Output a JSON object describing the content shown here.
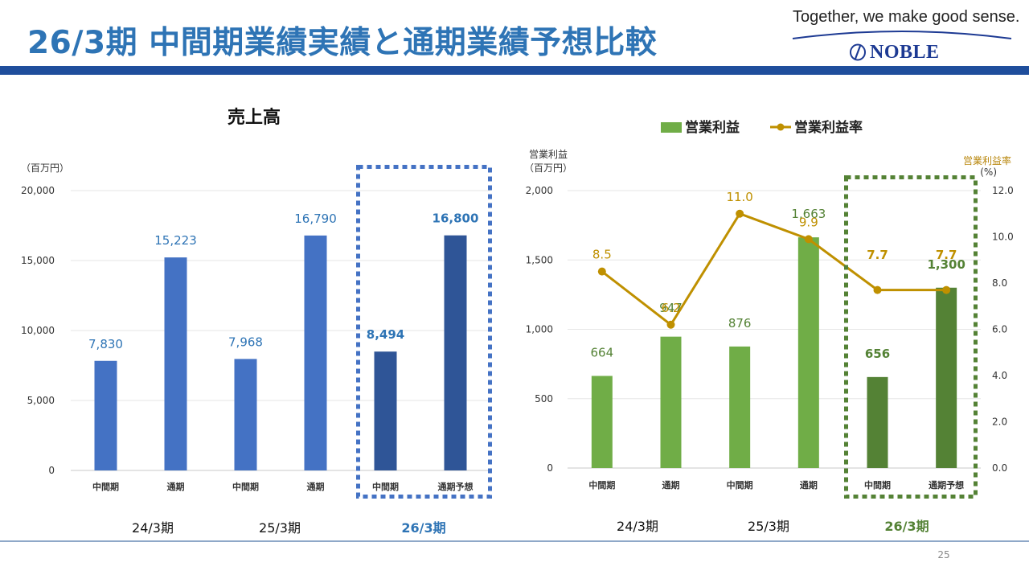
{
  "header": {
    "title": "26/3期 中間期業績実績と通期業績予想比較",
    "tagline": "Together, we make good sense.",
    "logo_text": "NOBLE"
  },
  "page_number": "25",
  "colors": {
    "title": "#2e74b5",
    "band": "#1f4e9c",
    "sales_bar": "#4472c4",
    "sales_bar_dark": "#2f5597",
    "sales_frame": "#4472c4",
    "sales_label": "#2e74b5",
    "profit_bar": "#70ad47",
    "profit_bar_dark": "#548235",
    "profit_frame": "#548235",
    "profit_label": "#548235",
    "rate_line": "#bf9000"
  },
  "chart_data": [
    {
      "type": "bar",
      "title": "売上高",
      "unit_label": "（百万円）",
      "categories": [
        "中間期",
        "通期",
        "中間期",
        "通期",
        "中間期",
        "通期予想"
      ],
      "values": [
        7830,
        15223,
        7968,
        16790,
        8494,
        16800
      ],
      "value_labels": [
        "7,830",
        "15,223",
        "7,968",
        "16,790",
        "8,494",
        "16,800"
      ],
      "highlight": [
        false,
        false,
        false,
        false,
        true,
        true
      ],
      "period_labels": [
        "24/3期",
        "25/3期",
        "26/3期"
      ],
      "ylim": [
        0,
        20000
      ],
      "yticks": [
        0,
        5000,
        10000,
        15000,
        20000
      ],
      "ytick_labels": [
        "0",
        "5,000",
        "10,000",
        "15,000",
        "20,000"
      ]
    },
    {
      "type": "bar",
      "legend": [
        "営業利益",
        "営業利益率"
      ],
      "unit_label_left_1": "営業利益",
      "unit_label_left_2": "（百万円）",
      "unit_label_right_1": "営業利益率",
      "unit_label_right_2": "(%)",
      "categories": [
        "中間期",
        "通期",
        "中間期",
        "通期",
        "中間期",
        "通期予想"
      ],
      "series": [
        {
          "name": "営業利益",
          "type": "bar",
          "values": [
            664,
            947,
            876,
            1663,
            656,
            1300
          ],
          "value_labels": [
            "664",
            "947",
            "876",
            "1,663",
            "656",
            "1,300"
          ]
        },
        {
          "name": "営業利益率",
          "type": "line",
          "axis": "right",
          "values": [
            8.5,
            6.2,
            11.0,
            9.9,
            7.7,
            7.7
          ],
          "value_labels": [
            "8.5",
            "6.2",
            "11.0",
            "9.9",
            "7.7",
            "7.7"
          ]
        }
      ],
      "highlight": [
        false,
        false,
        false,
        false,
        true,
        true
      ],
      "period_labels": [
        "24/3期",
        "25/3期",
        "26/3期"
      ],
      "ylim": [
        0,
        2000
      ],
      "yticks": [
        0,
        500,
        1000,
        1500,
        2000
      ],
      "ytick_labels": [
        "0",
        "500",
        "1,000",
        "1,500",
        "2,000"
      ],
      "y2lim": [
        0,
        12
      ],
      "y2ticks": [
        0,
        2,
        4,
        6,
        8,
        10,
        12
      ],
      "y2tick_labels": [
        "0.0",
        "2.0",
        "4.0",
        "6.0",
        "8.0",
        "10.0",
        "12.0"
      ]
    }
  ]
}
